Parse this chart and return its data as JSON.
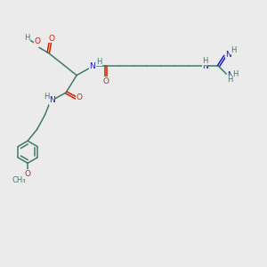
{
  "background_color": "#ebebeb",
  "C": "#3d7a6a",
  "O": "#cc2200",
  "N": "#1a1acc",
  "H": "#3d7a6a",
  "figsize": [
    3.0,
    3.0
  ],
  "dpi": 100
}
